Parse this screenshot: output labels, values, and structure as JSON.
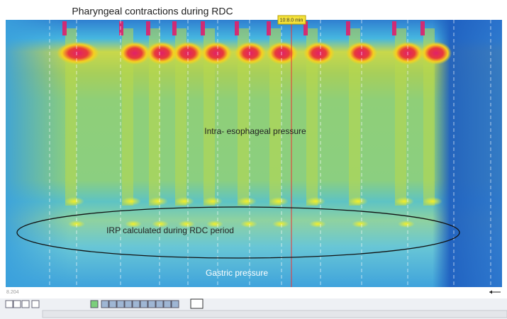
{
  "header": {
    "title": "Pharyngeal contractions during RDC"
  },
  "marker": {
    "label": "10:8.0 min"
  },
  "annotations": [
    "Intra-  esophageal pressure",
    "IRP calculated during RDC period",
    "Gastric pressure"
  ],
  "status": {
    "left_value": "8.204"
  }
}
